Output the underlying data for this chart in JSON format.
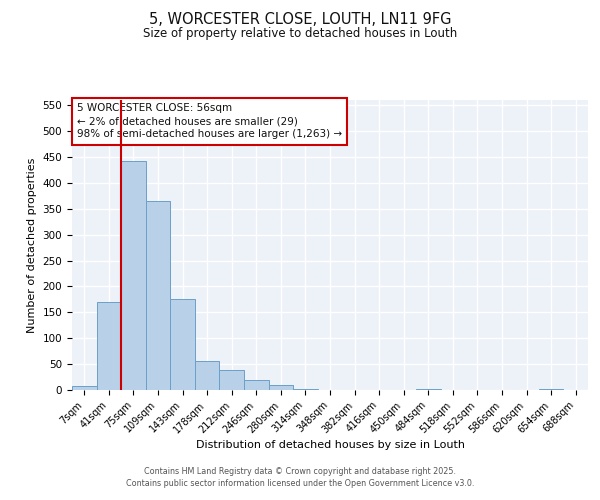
{
  "title1": "5, WORCESTER CLOSE, LOUTH, LN11 9FG",
  "title2": "Size of property relative to detached houses in Louth",
  "xlabel": "Distribution of detached houses by size in Louth",
  "ylabel": "Number of detached properties",
  "bar_labels": [
    "7sqm",
    "41sqm",
    "75sqm",
    "109sqm",
    "143sqm",
    "178sqm",
    "212sqm",
    "246sqm",
    "280sqm",
    "314sqm",
    "348sqm",
    "382sqm",
    "416sqm",
    "450sqm",
    "484sqm",
    "518sqm",
    "552sqm",
    "586sqm",
    "620sqm",
    "654sqm",
    "688sqm"
  ],
  "bar_values": [
    8,
    170,
    443,
    365,
    176,
    56,
    38,
    20,
    10,
    1,
    0,
    0,
    0,
    0,
    2,
    0,
    0,
    0,
    0,
    2,
    0
  ],
  "bar_color": "#b8d0e8",
  "bar_edge_color": "#6aa0c8",
  "ylim": [
    0,
    560
  ],
  "yticks": [
    0,
    50,
    100,
    150,
    200,
    250,
    300,
    350,
    400,
    450,
    500,
    550
  ],
  "vline_x": 1.48,
  "vline_color": "#cc0000",
  "annotation_title": "5 WORCESTER CLOSE: 56sqm",
  "annotation_line1": "← 2% of detached houses are smaller (29)",
  "annotation_line2": "98% of semi-detached houses are larger (1,263) →",
  "annotation_box_color": "#cc0000",
  "annotation_bg": "#ffffff",
  "footer1": "Contains HM Land Registry data © Crown copyright and database right 2025.",
  "footer2": "Contains public sector information licensed under the Open Government Licence v3.0.",
  "background_color": "#edf2f9",
  "grid_color": "#ffffff",
  "fig_bg": "#ffffff"
}
